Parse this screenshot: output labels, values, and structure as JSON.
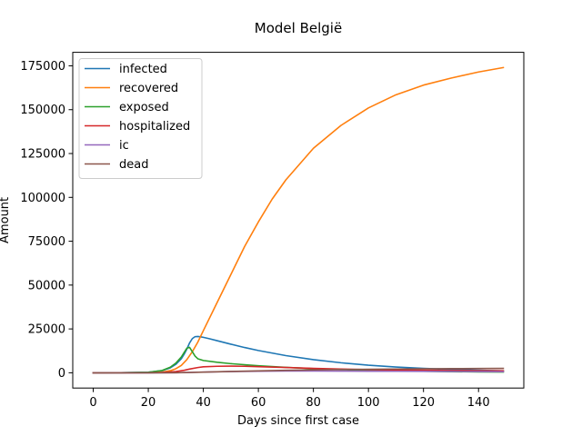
{
  "chart_data": {
    "type": "line",
    "title": "Model België",
    "xlabel": "Days since first case",
    "ylabel": "Amount",
    "xlim": [
      -7.45,
      156.45
    ],
    "ylim": [
      -8700,
      182700
    ],
    "xticks": [
      0,
      20,
      40,
      60,
      80,
      100,
      120,
      140
    ],
    "yticks": [
      0,
      25000,
      50000,
      75000,
      100000,
      125000,
      150000,
      175000
    ],
    "legend_position": "top-left",
    "grid": false,
    "series": [
      {
        "name": "infected",
        "color": "#1f77b4",
        "x": [
          0,
          10,
          20,
          25,
          28,
          30,
          32,
          33,
          34,
          35,
          36,
          37,
          38,
          39,
          40,
          42,
          45,
          50,
          55,
          60,
          70,
          80,
          90,
          100,
          110,
          120,
          130,
          140,
          149
        ],
        "y": [
          0,
          30,
          300,
          1200,
          2800,
          4800,
          8000,
          10500,
          13500,
          17000,
          19500,
          20600,
          20700,
          20500,
          20200,
          19500,
          18300,
          16300,
          14400,
          12700,
          9800,
          7500,
          5700,
          4300,
          3300,
          2500,
          1900,
          1450,
          1100
        ]
      },
      {
        "name": "recovered",
        "color": "#ff7f0e",
        "x": [
          0,
          10,
          20,
          25,
          28,
          30,
          32,
          34,
          36,
          38,
          40,
          45,
          50,
          55,
          60,
          65,
          70,
          80,
          90,
          100,
          110,
          120,
          130,
          140,
          149
        ],
        "y": [
          0,
          10,
          80,
          400,
          1200,
          2300,
          4200,
          7500,
          12000,
          17500,
          24000,
          40000,
          56000,
          72000,
          86000,
          99000,
          110000,
          128000,
          141000,
          151000,
          158500,
          164000,
          168000,
          171500,
          174000
        ]
      },
      {
        "name": "exposed",
        "color": "#2ca02c",
        "x": [
          0,
          10,
          20,
          25,
          28,
          30,
          32,
          33,
          34,
          35,
          36,
          37,
          38,
          40,
          45,
          50,
          60,
          70,
          80,
          90,
          100,
          110,
          120,
          130,
          140,
          149
        ],
        "y": [
          0,
          30,
          300,
          1300,
          3200,
          5500,
          9000,
          11500,
          14000,
          14500,
          12000,
          9500,
          8000,
          7000,
          6000,
          5200,
          4000,
          3100,
          2400,
          1800,
          1400,
          1100,
          850,
          650,
          500,
          400
        ]
      },
      {
        "name": "hospitalized",
        "color": "#d62728",
        "x": [
          0,
          20,
          25,
          30,
          33,
          35,
          38,
          40,
          45,
          50,
          55,
          60,
          70,
          80,
          90,
          100,
          110,
          120,
          130,
          140,
          149
        ],
        "y": [
          0,
          20,
          150,
          700,
          1400,
          2100,
          3000,
          3400,
          3700,
          3800,
          3700,
          3500,
          3000,
          2500,
          2100,
          1800,
          1600,
          1400,
          1300,
          1200,
          1150
        ]
      },
      {
        "name": "ic",
        "color": "#9467bd",
        "x": [
          0,
          20,
          30,
          35,
          40,
          50,
          60,
          70,
          80,
          90,
          100,
          110,
          120,
          130,
          140,
          149
        ],
        "y": [
          0,
          5,
          60,
          200,
          400,
          700,
          900,
          1000,
          1000,
          950,
          900,
          850,
          800,
          750,
          700,
          650
        ]
      },
      {
        "name": "dead",
        "color": "#8c564b",
        "x": [
          0,
          20,
          30,
          35,
          40,
          50,
          60,
          70,
          80,
          90,
          100,
          110,
          120,
          130,
          140,
          149
        ],
        "y": [
          0,
          5,
          40,
          150,
          350,
          750,
          1100,
          1400,
          1650,
          1850,
          2000,
          2150,
          2250,
          2350,
          2450,
          2500
        ]
      }
    ]
  }
}
